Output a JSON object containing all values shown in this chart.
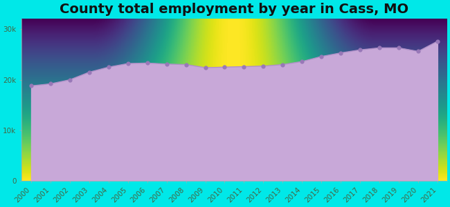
{
  "title": "County total employment by year in Cass, MO",
  "years": [
    2000,
    2001,
    2002,
    2003,
    2004,
    2005,
    2006,
    2007,
    2008,
    2009,
    2010,
    2011,
    2012,
    2013,
    2014,
    2015,
    2016,
    2017,
    2018,
    2019,
    2020,
    2021
  ],
  "values": [
    18800,
    19200,
    20000,
    21500,
    22500,
    23200,
    23300,
    23100,
    23000,
    22400,
    22500,
    22600,
    22700,
    23000,
    23600,
    24600,
    25300,
    25900,
    26300,
    26300,
    25600,
    27600
  ],
  "ylim": [
    0,
    32000
  ],
  "yticks": [
    0,
    10000,
    20000,
    30000
  ],
  "ytick_labels": [
    "0",
    "10k",
    "20k",
    "30k"
  ],
  "background_color": "#00e8e8",
  "area_fill_color": "#c8a8d8",
  "area_fill_alpha": 1.0,
  "line_color": "#b090c8",
  "dot_color": "#9878b8",
  "dot_size": 12,
  "title_fontsize": 14,
  "title_color": "#111111",
  "tick_label_color": "#446644",
  "tick_fontsize": 7.5,
  "plot_bg_top": "#f0fff0",
  "plot_bg_bottom": "#ffffff"
}
